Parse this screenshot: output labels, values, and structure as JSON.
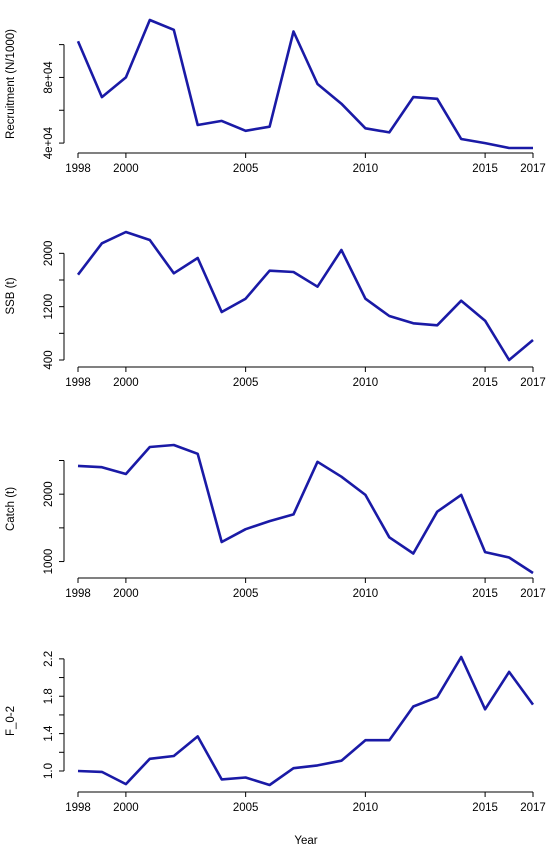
{
  "figure": {
    "xlabel": "Year"
  },
  "chart_data": [
    {
      "type": "line",
      "ylabel": "Recruitment (N/1000)",
      "x": [
        1998,
        1999,
        2000,
        2001,
        2002,
        2003,
        2004,
        2005,
        2006,
        2007,
        2008,
        2009,
        2010,
        2011,
        2012,
        2013,
        2014,
        2015,
        2016,
        2017
      ],
      "values": [
        102000,
        68000,
        80000,
        115000,
        109000,
        51000,
        53500,
        47500,
        50000,
        108000,
        76000,
        64000,
        49000,
        46500,
        68000,
        67000,
        42500,
        40000,
        37000,
        37000
      ],
      "xticks": [
        1998,
        2000,
        2005,
        2010,
        2015,
        2017
      ],
      "yticks": [
        40000,
        60000,
        80000,
        100000
      ],
      "yticklabels": [
        "4e+04",
        "",
        "8e+04",
        ""
      ],
      "xlim": [
        1998,
        2017
      ],
      "ylim": [
        37000,
        115000
      ]
    },
    {
      "type": "line",
      "ylabel": "SSB (t)",
      "x": [
        1998,
        1999,
        2000,
        2001,
        2002,
        2003,
        2004,
        2005,
        2006,
        2007,
        2008,
        2009,
        2010,
        2011,
        2012,
        2013,
        2014,
        2015,
        2016,
        2017
      ],
      "values": [
        1680,
        2150,
        2320,
        2200,
        1700,
        1930,
        1120,
        1320,
        1740,
        1720,
        1500,
        2050,
        1320,
        1060,
        950,
        920,
        1290,
        990,
        400,
        700
      ],
      "xticks": [
        1998,
        2000,
        2005,
        2010,
        2015,
        2017
      ],
      "yticks": [
        400,
        800,
        1200,
        1600,
        2000
      ],
      "yticklabels": [
        "400",
        "",
        "1200",
        "",
        "2000"
      ],
      "xlim": [
        1998,
        2017
      ],
      "ylim": [
        400,
        2320
      ]
    },
    {
      "type": "line",
      "ylabel": "Catch (t)",
      "x": [
        1998,
        1999,
        2000,
        2001,
        2002,
        2003,
        2004,
        2005,
        2006,
        2007,
        2008,
        2009,
        2010,
        2011,
        2012,
        2013,
        2014,
        2015,
        2016,
        2017
      ],
      "values": [
        2420,
        2400,
        2300,
        2700,
        2730,
        2600,
        1290,
        1480,
        1600,
        1700,
        2480,
        2260,
        1990,
        1360,
        1120,
        1740,
        1990,
        1140,
        1060,
        830
      ],
      "xticks": [
        1998,
        2000,
        2005,
        2010,
        2015,
        2017
      ],
      "yticks": [
        1000,
        1500,
        2000,
        2500
      ],
      "yticklabels": [
        "1000",
        "",
        "2000",
        ""
      ],
      "xlim": [
        1998,
        2017
      ],
      "ylim": [
        830,
        2730
      ]
    },
    {
      "type": "line",
      "ylabel": "F_0-2",
      "x": [
        1998,
        1999,
        2000,
        2001,
        2002,
        2003,
        2004,
        2005,
        2006,
        2007,
        2008,
        2009,
        2010,
        2011,
        2012,
        2013,
        2014,
        2015,
        2016,
        2017
      ],
      "values": [
        1.0,
        0.99,
        0.86,
        1.13,
        1.16,
        1.37,
        0.91,
        0.93,
        0.85,
        1.03,
        1.06,
        1.11,
        1.33,
        1.33,
        1.69,
        1.79,
        2.22,
        1.66,
        2.06,
        1.71
      ],
      "xticks": [
        1998,
        2000,
        2005,
        2010,
        2015,
        2017
      ],
      "yticks": [
        1.0,
        1.2,
        1.4,
        1.6,
        1.8,
        2.0,
        2.2
      ],
      "yticklabels": [
        "1.0",
        "",
        "1.4",
        "",
        "1.8",
        "",
        "2.2"
      ],
      "xlim": [
        1998,
        2017
      ],
      "ylim": [
        0.85,
        2.22
      ]
    }
  ]
}
